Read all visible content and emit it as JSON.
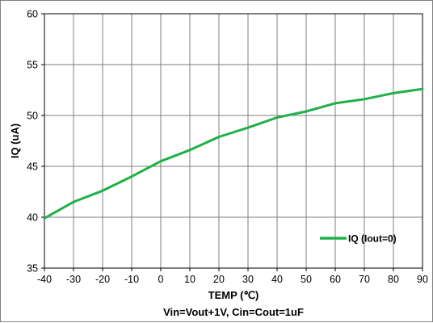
{
  "chart_data": {
    "type": "line",
    "title": "",
    "caption": "Vin=Vout+1V, Cin=Cout=1uF",
    "xlabel": "TEMP (℃)",
    "ylabel": "IQ (uA)",
    "xlim": [
      -40,
      90
    ],
    "ylim": [
      35,
      60
    ],
    "x_ticks": [
      -40,
      -30,
      -20,
      -10,
      0,
      10,
      20,
      30,
      40,
      50,
      60,
      70,
      80,
      90
    ],
    "y_ticks": [
      35,
      40,
      45,
      50,
      55,
      60
    ],
    "grid": true,
    "legend_position": "bottom-right",
    "series": [
      {
        "name": "IQ (Iout=0)",
        "color": "#1fb04a",
        "x": [
          -40,
          -30,
          -20,
          -10,
          0,
          10,
          20,
          30,
          40,
          50,
          60,
          70,
          80,
          90
        ],
        "y": [
          39.9,
          41.5,
          42.6,
          44.0,
          45.5,
          46.6,
          47.9,
          48.8,
          49.8,
          50.4,
          51.2,
          51.6,
          52.2,
          52.6
        ]
      }
    ]
  }
}
